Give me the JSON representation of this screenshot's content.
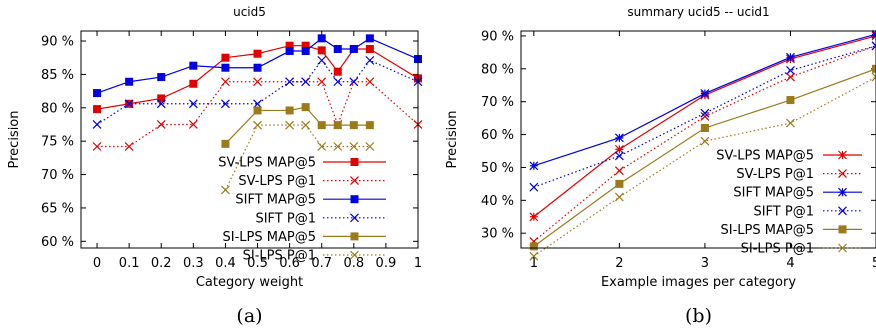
{
  "chart_data": [
    {
      "type": "line",
      "title": "ucid5",
      "xlabel": "Category weight",
      "ylabel": "Precision",
      "caption": "(a)",
      "xlim": [
        -0.05,
        1.0
      ],
      "ylim": [
        59,
        91.5
      ],
      "xticks": [
        0,
        0.1,
        0.2,
        0.3,
        0.4,
        0.5,
        0.6,
        0.7,
        0.8,
        0.9,
        1
      ],
      "xtick_labels": [
        "0",
        "0.1",
        "0.2",
        "0.3",
        "0.4",
        "0.5",
        "0.6",
        "0.7",
        "0.8",
        "0.9",
        "1"
      ],
      "yticks": [
        60,
        65,
        70,
        75,
        80,
        85,
        90
      ],
      "ytick_labels": [
        "60 %",
        "65 %",
        "70 %",
        "75 %",
        "80 %",
        "85 %",
        "90 %"
      ],
      "grid": false,
      "legend_position": "bottom-right",
      "series": [
        {
          "name": "SV-LPS MAP@5",
          "color": "#e00000",
          "dash": "solid",
          "marker": "filled-square",
          "x": [
            0,
            0.1,
            0.2,
            0.3,
            0.4,
            0.5,
            0.6,
            0.65,
            0.7,
            0.75,
            0.8,
            0.85,
            1
          ],
          "y": [
            79.8,
            80.6,
            81.4,
            83.6,
            87.5,
            88.1,
            89.3,
            89.3,
            88.6,
            85.4,
            88.8,
            88.8,
            84.4
          ]
        },
        {
          "name": "SV-LPS P@1",
          "color": "#e00000",
          "dash": "dotted",
          "marker": "x",
          "x": [
            0,
            0.1,
            0.2,
            0.3,
            0.4,
            0.5,
            0.6,
            0.65,
            0.7,
            0.75,
            0.8,
            0.85,
            1
          ],
          "y": [
            74.2,
            74.2,
            77.5,
            77.5,
            83.9,
            83.9,
            83.9,
            83.9,
            83.9,
            77.5,
            83.9,
            83.9,
            77.5
          ]
        },
        {
          "name": "SIFT MAP@5",
          "color": "#0000e0",
          "dash": "solid",
          "marker": "filled-square",
          "x": [
            0,
            0.1,
            0.2,
            0.3,
            0.4,
            0.5,
            0.6,
            0.65,
            0.7,
            0.75,
            0.8,
            0.85,
            1
          ],
          "y": [
            82.2,
            83.9,
            84.6,
            86.3,
            86.0,
            86.0,
            88.5,
            88.5,
            90.4,
            88.8,
            88.8,
            90.4,
            87.3
          ]
        },
        {
          "name": "SIFT P@1",
          "color": "#0000e0",
          "dash": "dotted",
          "marker": "x",
          "x": [
            0,
            0.1,
            0.2,
            0.3,
            0.4,
            0.5,
            0.6,
            0.65,
            0.7,
            0.75,
            0.8,
            0.85,
            1
          ],
          "y": [
            77.5,
            80.6,
            80.6,
            80.6,
            80.6,
            80.6,
            83.9,
            83.9,
            87.1,
            83.9,
            83.9,
            87.1,
            83.9
          ]
        },
        {
          "name": "SI-LPS MAP@5",
          "color": "#9c7a1a",
          "dash": "solid",
          "marker": "filled-square",
          "x": [
            0.4,
            0.5,
            0.6,
            0.65,
            0.7,
            0.75,
            0.8,
            0.85
          ],
          "y": [
            74.6,
            79.6,
            79.6,
            80.1,
            77.4,
            77.4,
            77.4,
            77.4
          ]
        },
        {
          "name": "SI-LPS P@1",
          "color": "#9c7a1a",
          "dash": "dotted",
          "marker": "x",
          "x": [
            0.4,
            0.5,
            0.6,
            0.65,
            0.7,
            0.75,
            0.8,
            0.85
          ],
          "y": [
            67.7,
            77.4,
            77.4,
            77.4,
            74.2,
            74.2,
            74.2,
            74.2
          ]
        }
      ]
    },
    {
      "type": "line",
      "title": "summary ucid5 -- ucid1",
      "xlabel": "Example images per category",
      "ylabel": "Precision",
      "caption": "(b)",
      "xlim": [
        0.85,
        5.0
      ],
      "ylim": [
        25.5,
        91.5
      ],
      "xticks": [
        1,
        2,
        3,
        4,
        5
      ],
      "xtick_labels": [
        "1",
        "2",
        "3",
        "4",
        "5"
      ],
      "yticks": [
        30,
        40,
        50,
        60,
        70,
        80,
        90
      ],
      "ytick_labels": [
        "30 %",
        "40 %",
        "50 %",
        "60 %",
        "70 %",
        "80 %",
        "90 %"
      ],
      "grid": false,
      "legend_position": "bottom-right",
      "series": [
        {
          "name": "SV-LPS MAP@5",
          "color": "#e00000",
          "dash": "solid",
          "marker": "asterisk",
          "x": [
            1,
            2,
            3,
            4,
            5
          ],
          "y": [
            35.0,
            55.5,
            72.0,
            83.0,
            90.0
          ]
        },
        {
          "name": "SV-LPS P@1",
          "color": "#e00000",
          "dash": "dotted",
          "marker": "x",
          "x": [
            1,
            2,
            3,
            4,
            5
          ],
          "y": [
            27.5,
            49.0,
            65.5,
            77.5,
            87.0
          ]
        },
        {
          "name": "SIFT MAP@5",
          "color": "#0000e0",
          "dash": "solid",
          "marker": "asterisk",
          "x": [
            1,
            2,
            3,
            4,
            5
          ],
          "y": [
            50.5,
            59.0,
            72.5,
            83.5,
            90.5
          ]
        },
        {
          "name": "SIFT P@1",
          "color": "#0000e0",
          "dash": "dotted",
          "marker": "x",
          "x": [
            1,
            2,
            3,
            4,
            5
          ],
          "y": [
            44.0,
            53.5,
            66.5,
            79.5,
            87.0
          ]
        },
        {
          "name": "SI-LPS MAP@5",
          "color": "#9c7a1a",
          "dash": "solid",
          "marker": "filled-square",
          "x": [
            1,
            2,
            3,
            4,
            5
          ],
          "y": [
            26.0,
            45.0,
            62.0,
            70.5,
            80.0
          ]
        },
        {
          "name": "SI-LPS P@1",
          "color": "#9c7a1a",
          "dash": "dotted",
          "marker": "x",
          "x": [
            1,
            2,
            3,
            4,
            5
          ],
          "y": [
            23.0,
            41.0,
            58.0,
            63.5,
            77.5
          ]
        }
      ]
    }
  ]
}
